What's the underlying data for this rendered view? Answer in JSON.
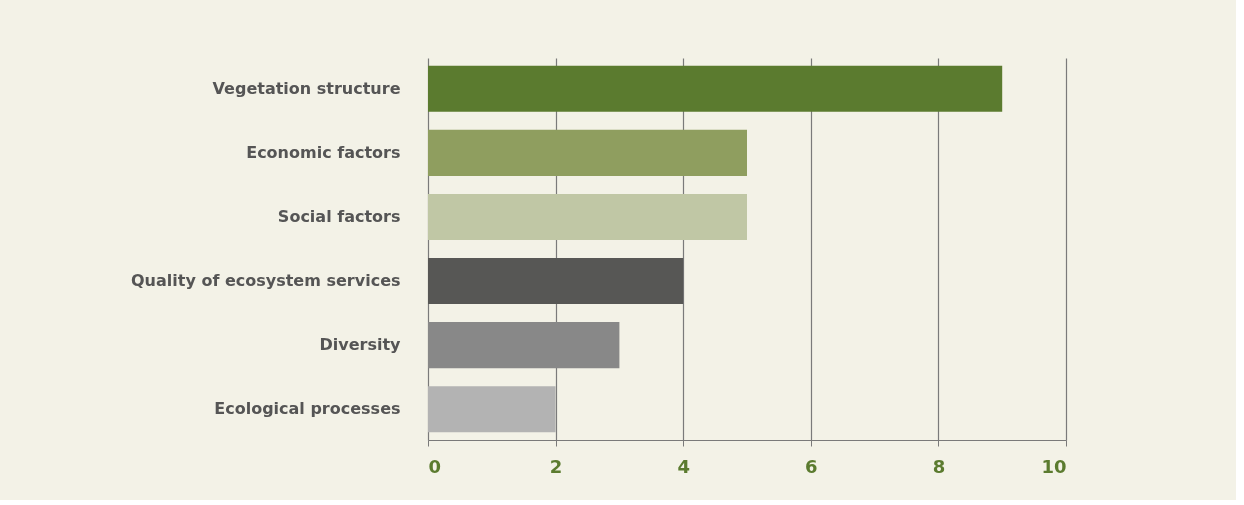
{
  "chart_data": {
    "type": "bar",
    "orientation": "horizontal",
    "categories": [
      "Vegetation structure",
      "Economic factors",
      "Social factors",
      "Quality of ecosystem services",
      "Diversity",
      "Ecological processes"
    ],
    "values": [
      9,
      5,
      5,
      4,
      3,
      2
    ],
    "colors": [
      "#5b7b2f",
      "#8f9e5f",
      "#c0c7a5",
      "#575755",
      "#888888",
      "#b3b3b3"
    ],
    "xlim": [
      0,
      10
    ],
    "xticks": [
      0,
      2,
      4,
      6,
      8,
      10
    ],
    "grid": "x"
  }
}
